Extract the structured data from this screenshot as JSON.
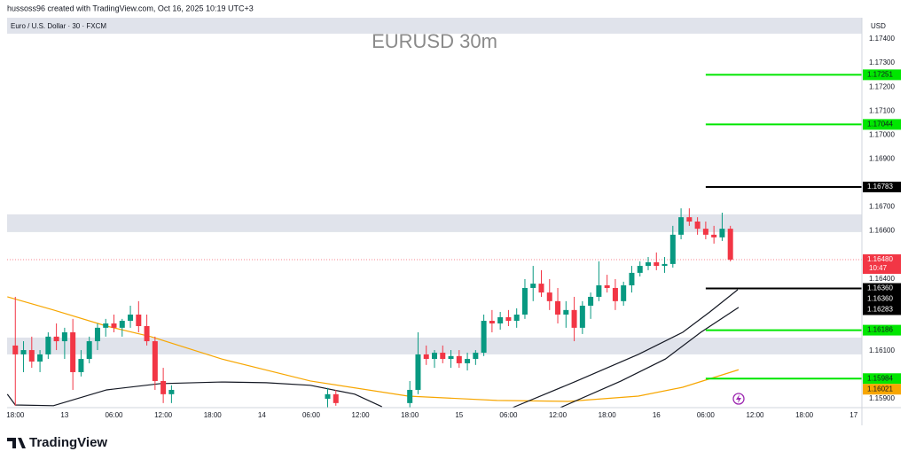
{
  "chart_data": {
    "type": "candlestick",
    "credit": "hussoss96 created with TradingView.com, Oct 16, 2025 10:19 UTC+3",
    "symbol": "Euro / U.S. Dollar · 30 · FXCM",
    "title": "EURUSD 30m",
    "currency": "USD",
    "brand": "TradingView",
    "up_color": "#089981",
    "down_color": "#f23645",
    "xlim": [
      -7,
      97
    ],
    "ylim": [
      1.15863,
      1.17415
    ],
    "xticks": [
      {
        "value": -6,
        "label": "18:00"
      },
      {
        "value": 0,
        "label": "13"
      },
      {
        "value": 6,
        "label": "06:00"
      },
      {
        "value": 12,
        "label": "12:00"
      },
      {
        "value": 18,
        "label": "18:00"
      },
      {
        "value": 24,
        "label": "14"
      },
      {
        "value": 30,
        "label": "06:00"
      },
      {
        "value": 36,
        "label": "12:00"
      },
      {
        "value": 42,
        "label": "18:00"
      },
      {
        "value": 48,
        "label": "15"
      },
      {
        "value": 54,
        "label": "06:00"
      },
      {
        "value": 60,
        "label": "12:00"
      },
      {
        "value": 66,
        "label": "18:00"
      },
      {
        "value": 72,
        "label": "16"
      },
      {
        "value": 78,
        "label": "06:00"
      },
      {
        "value": 84,
        "label": "12:00"
      },
      {
        "value": 90,
        "label": "18:00"
      },
      {
        "value": 96,
        "label": "17"
      }
    ],
    "yticks": [
      {
        "value": 1.174,
        "label": "1.17400"
      },
      {
        "value": 1.173,
        "label": "1.17300"
      },
      {
        "value": 1.172,
        "label": "1.17200"
      },
      {
        "value": 1.171,
        "label": "1.17100"
      },
      {
        "value": 1.17,
        "label": "1.17000"
      },
      {
        "value": 1.169,
        "label": "1.16900"
      },
      {
        "value": 1.167,
        "label": "1.16700"
      },
      {
        "value": 1.166,
        "label": "1.16600"
      },
      {
        "value": 1.164,
        "label": "1.16400"
      },
      {
        "value": 1.161,
        "label": "1.16100"
      },
      {
        "value": 1.159,
        "label": "1.15900"
      }
    ],
    "zones": [
      {
        "low": 1.16595,
        "high": 1.16669,
        "color": "#e0e3eb"
      },
      {
        "low": 1.16085,
        "high": 1.16155,
        "color": "#e0e3eb"
      }
    ],
    "x": [
      -6,
      -5,
      -4,
      -3,
      -2,
      -1,
      0,
      1,
      2,
      3,
      4,
      5,
      6,
      7,
      8,
      9,
      10,
      11,
      12,
      13,
      32,
      33,
      42,
      43,
      44,
      45,
      46,
      47,
      48,
      49,
      50,
      51,
      52,
      53,
      54,
      55,
      56,
      57,
      58,
      59,
      60,
      61,
      62,
      63,
      64,
      65,
      66,
      67,
      68,
      69,
      70,
      71,
      72,
      73,
      74,
      75,
      76,
      77,
      78,
      79,
      80,
      81
    ],
    "open": [
      1.16122,
      1.16085,
      1.16103,
      1.16055,
      1.16085,
      1.16159,
      1.1614,
      1.16177,
      1.16011,
      1.16066,
      1.1614,
      1.16196,
      1.16214,
      1.16196,
      1.16225,
      1.16251,
      1.16203,
      1.1614,
      1.15974,
      1.15919,
      1.159,
      1.15919,
      1.15882,
      1.15937,
      1.16085,
      1.16066,
      1.16092,
      1.16066,
      1.16078,
      1.16048,
      1.16066,
      1.16092,
      1.16225,
      1.16214,
      1.1624,
      1.16225,
      1.16251,
      1.16362,
      1.1638,
      1.16343,
      1.16307,
      1.16251,
      1.1627,
      1.16196,
      1.16288,
      1.16325,
      1.16373,
      1.16362,
      1.16307,
      1.16373,
      1.16425,
      1.16454,
      1.16469,
      1.16454,
      1.16462,
      1.16584,
      1.16657,
      1.16639,
      1.16609,
      1.16584,
      1.16573,
      1.16609
    ],
    "high": [
      1.16325,
      1.1614,
      1.16159,
      1.16103,
      1.16177,
      1.16214,
      1.16196,
      1.16233,
      1.16103,
      1.16159,
      1.16214,
      1.16233,
      1.16251,
      1.16233,
      1.16288,
      1.16307,
      1.16251,
      1.16159,
      1.16029,
      1.15956,
      1.15945,
      1.15937,
      1.15974,
      1.16177,
      1.16122,
      1.16103,
      1.16122,
      1.16103,
      1.16103,
      1.16092,
      1.16103,
      1.16251,
      1.1627,
      1.16262,
      1.1627,
      1.16277,
      1.16399,
      1.16454,
      1.16436,
      1.16399,
      1.16362,
      1.16307,
      1.16325,
      1.16307,
      1.16343,
      1.16473,
      1.16417,
      1.16399,
      1.16388,
      1.16454,
      1.16473,
      1.16491,
      1.1651,
      1.16491,
      1.16621,
      1.16694,
      1.16694,
      1.16657,
      1.16639,
      1.16621,
      1.16676,
      1.16621
    ],
    "low": [
      1.15871,
      1.16011,
      1.16029,
      1.16011,
      1.16066,
      1.16103,
      1.16066,
      1.15937,
      1.15993,
      1.16048,
      1.16103,
      1.16159,
      1.16177,
      1.16159,
      1.16196,
      1.16177,
      1.16122,
      1.15937,
      1.15882,
      1.15882,
      1.15863,
      1.15871,
      1.15863,
      1.15919,
      1.16041,
      1.16029,
      1.16048,
      1.16029,
      1.16029,
      1.16018,
      1.16041,
      1.16078,
      1.16177,
      1.16188,
      1.16203,
      1.16196,
      1.16233,
      1.16307,
      1.16325,
      1.1627,
      1.16214,
      1.16196,
      1.1614,
      1.1617,
      1.16233,
      1.16307,
      1.16343,
      1.1627,
      1.16288,
      1.16343,
      1.1641,
      1.16436,
      1.16436,
      1.16425,
      1.16447,
      1.16565,
      1.16621,
      1.16584,
      1.16565,
      1.16547,
      1.16558,
      1.16473
    ],
    "close": [
      1.16085,
      1.16103,
      1.16055,
      1.16085,
      1.16159,
      1.1614,
      1.16177,
      1.16011,
      1.16066,
      1.1614,
      1.16196,
      1.16214,
      1.16196,
      1.16225,
      1.16251,
      1.16203,
      1.1614,
      1.15974,
      1.15919,
      1.15937,
      1.15919,
      1.15882,
      1.15937,
      1.16085,
      1.16066,
      1.16092,
      1.16066,
      1.16078,
      1.16048,
      1.16066,
      1.16092,
      1.16225,
      1.16214,
      1.1624,
      1.16225,
      1.16251,
      1.16362,
      1.1638,
      1.16343,
      1.16307,
      1.16251,
      1.1627,
      1.16196,
      1.16288,
      1.16325,
      1.16373,
      1.16362,
      1.16307,
      1.16373,
      1.16425,
      1.16454,
      1.16469,
      1.16454,
      1.16462,
      1.16584,
      1.16657,
      1.16639,
      1.16609,
      1.16584,
      1.16573,
      1.16609,
      1.1648
    ],
    "lines": [
      {
        "color": "#f7a600",
        "x": [
          -6.97,
          -1.36,
          5.11,
          10.5,
          19.1,
          29.9,
          41.8,
          52.6,
          61.2,
          69.8,
          75.2,
          82
        ],
        "values": [
          1.16325,
          1.1627,
          1.16203,
          1.16159,
          1.16066,
          1.15974,
          1.15911,
          1.15893,
          1.15889,
          1.15911,
          1.15948,
          1.16021
        ]
      },
      {
        "color": "#131722",
        "x": [
          -6.97,
          -6,
          -1.36,
          5.11,
          11.6,
          19.1,
          24.5,
          29.9,
          35.3,
          38.6
        ],
        "values": [
          1.15919,
          1.15874,
          1.15871,
          1.15937,
          1.15963,
          1.1597,
          1.15967,
          1.15956,
          1.15919,
          1.15867
        ]
      },
      {
        "color": "#131722",
        "x": [
          54.5,
          62.3,
          69.8,
          75.2,
          78.5,
          81.9
        ],
        "values": [
          1.15863,
          1.15974,
          1.16085,
          1.16177,
          1.16262,
          1.16355
        ]
      },
      {
        "color": "#131722",
        "x": [
          60.3,
          67.7,
          73.1,
          77.4,
          82
        ],
        "values": [
          1.15863,
          1.15974,
          1.16066,
          1.16177,
          1.16281
        ]
      }
    ],
    "levels": [
      {
        "value": 1.17251,
        "label": "1.17251",
        "color": "#00e600",
        "x_start": 78
      },
      {
        "value": 1.17044,
        "label": "1.17044",
        "color": "#00e600",
        "x_start": 78
      },
      {
        "value": 1.16783,
        "label": "1.16783",
        "color": "#000000",
        "x_start": 78
      },
      {
        "value": 1.1636,
        "label": "1.16360",
        "color": "#000000",
        "x_start": 78
      },
      {
        "value": 1.16186,
        "label": "1.16186",
        "color": "#00e600",
        "x_start": 78
      },
      {
        "value": 1.15984,
        "label": "1.15984",
        "color": "#00e600",
        "x_start": 78
      }
    ],
    "price_marks": [
      {
        "value": 1.1648,
        "label": "1.16480",
        "sub": "10:47",
        "color": "#f23645"
      },
      {
        "value": 1.1636,
        "label": "1.16360",
        "color": "#000000"
      },
      {
        "value": 1.16283,
        "label": "1.16283",
        "color": "#000000"
      },
      {
        "value": 1.16021,
        "label": "1.16021",
        "color": "#f7a600"
      }
    ]
  }
}
